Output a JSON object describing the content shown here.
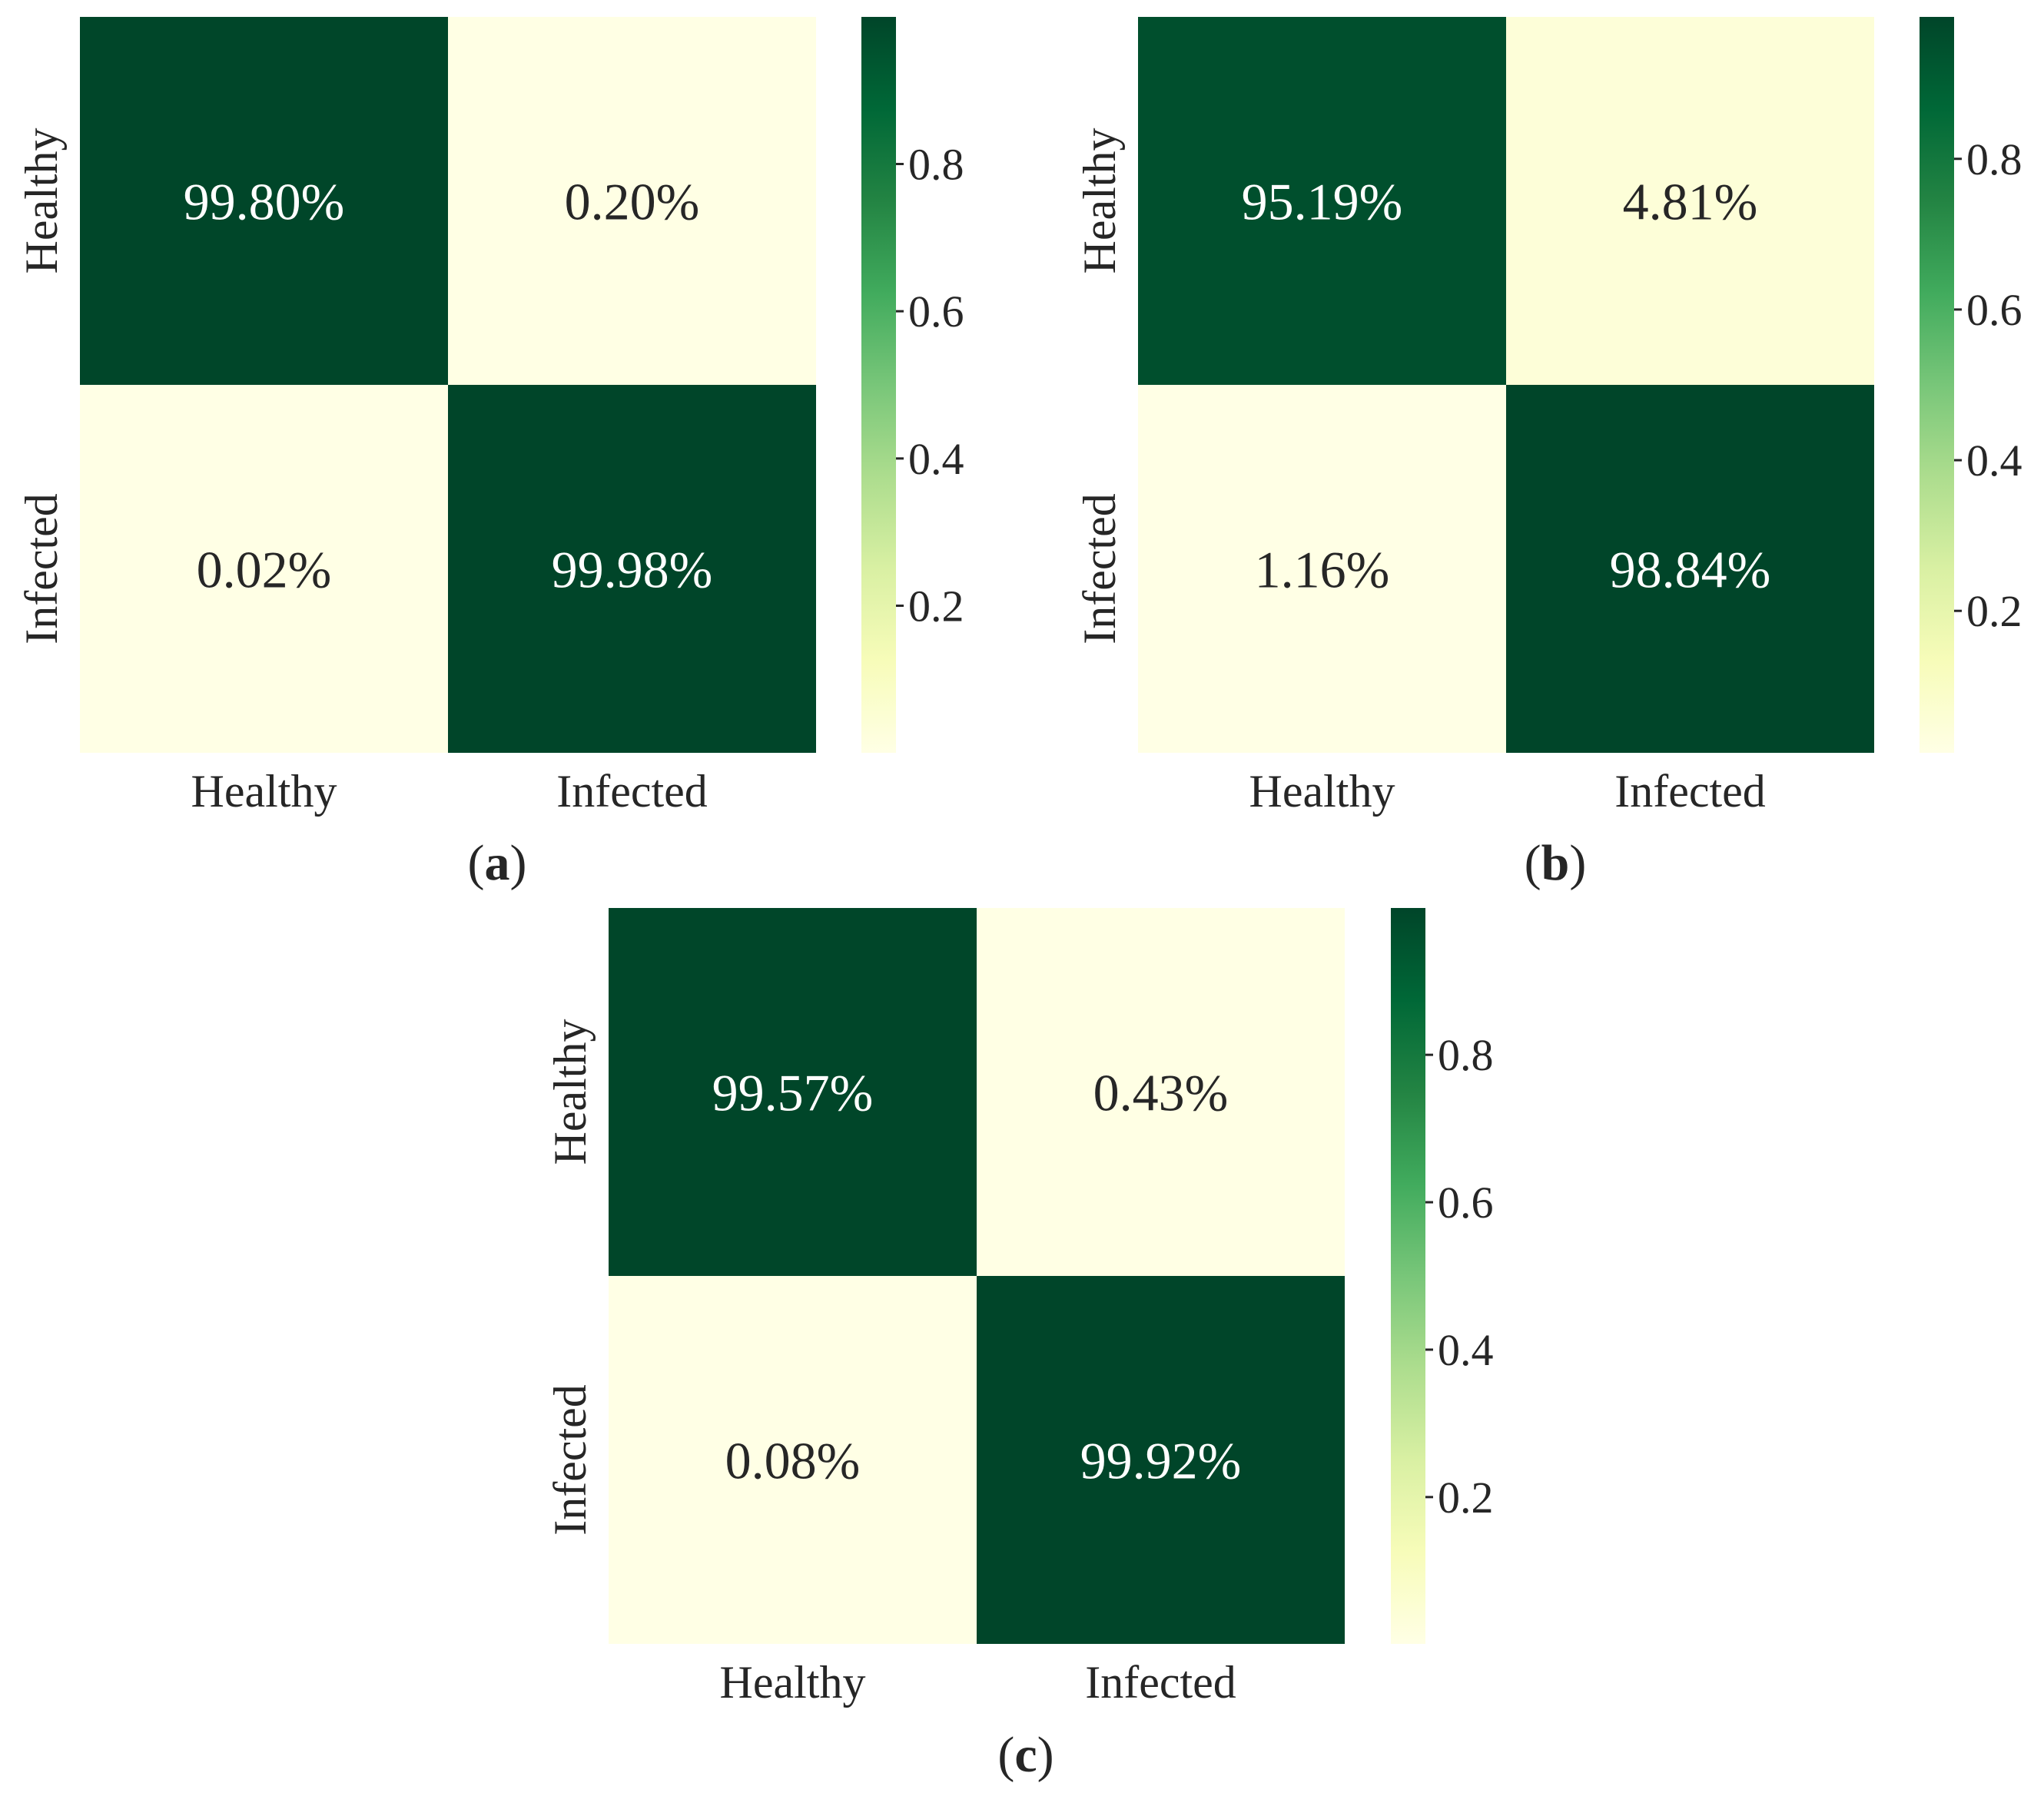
{
  "chart_data": [
    {
      "type": "heatmap",
      "panel": "(a)",
      "caption": {
        "open": "(",
        "letter": "a",
        "close": ")"
      },
      "row_labels": [
        "Healthy",
        "Infected"
      ],
      "col_labels": [
        "Healthy",
        "Infected"
      ],
      "values": [
        [
          0.998,
          0.002
        ],
        [
          0.0002,
          0.9998
        ]
      ],
      "annotations": [
        [
          "99.80%",
          "0.20%"
        ],
        [
          "0.02%",
          "99.98%"
        ]
      ],
      "colormap": "YlGn",
      "colorbar": {
        "range": [
          0.0002,
          0.9998
        ],
        "ticks": [
          0.2,
          0.4,
          0.6,
          0.8
        ],
        "tick_labels": [
          "0.2",
          "0.4",
          "0.6",
          "0.8"
        ]
      }
    },
    {
      "type": "heatmap",
      "panel": "(b)",
      "caption": {
        "open": "(",
        "letter": "b",
        "close": ")"
      },
      "row_labels": [
        "Healthy",
        "Infected"
      ],
      "col_labels": [
        "Healthy",
        "Infected"
      ],
      "values": [
        [
          0.9519,
          0.0481
        ],
        [
          0.0116,
          0.9884
        ]
      ],
      "annotations": [
        [
          "95.19%",
          "4.81%"
        ],
        [
          "1.16%",
          "98.84%"
        ]
      ],
      "colormap": "YlGn",
      "colorbar": {
        "range": [
          0.0116,
          0.9884
        ],
        "ticks": [
          0.2,
          0.4,
          0.6,
          0.8
        ],
        "tick_labels": [
          "0.2",
          "0.4",
          "0.6",
          "0.8"
        ]
      }
    },
    {
      "type": "heatmap",
      "panel": "(c)",
      "caption": {
        "open": "(",
        "letter": "c",
        "close": ")"
      },
      "row_labels": [
        "Healthy",
        "Infected"
      ],
      "col_labels": [
        "Healthy",
        "Infected"
      ],
      "values": [
        [
          0.9957,
          0.0043
        ],
        [
          0.0008,
          0.9992
        ]
      ],
      "annotations": [
        [
          "99.57%",
          "0.43%"
        ],
        [
          "0.08%",
          "99.92%"
        ]
      ],
      "colormap": "YlGn",
      "colorbar": {
        "range": [
          0.0008,
          0.9992
        ],
        "ticks": [
          0.2,
          0.4,
          0.6,
          0.8
        ],
        "tick_labels": [
          "0.2",
          "0.4",
          "0.6",
          "0.8"
        ]
      }
    }
  ],
  "colors": {
    "ylgn": [
      "#ffffe5",
      "#f7fcb9",
      "#d9f0a3",
      "#addd8e",
      "#78c679",
      "#41ab5d",
      "#238443",
      "#006837",
      "#004529"
    ],
    "text_light": "#ffffff",
    "text_dark": "#262626"
  }
}
